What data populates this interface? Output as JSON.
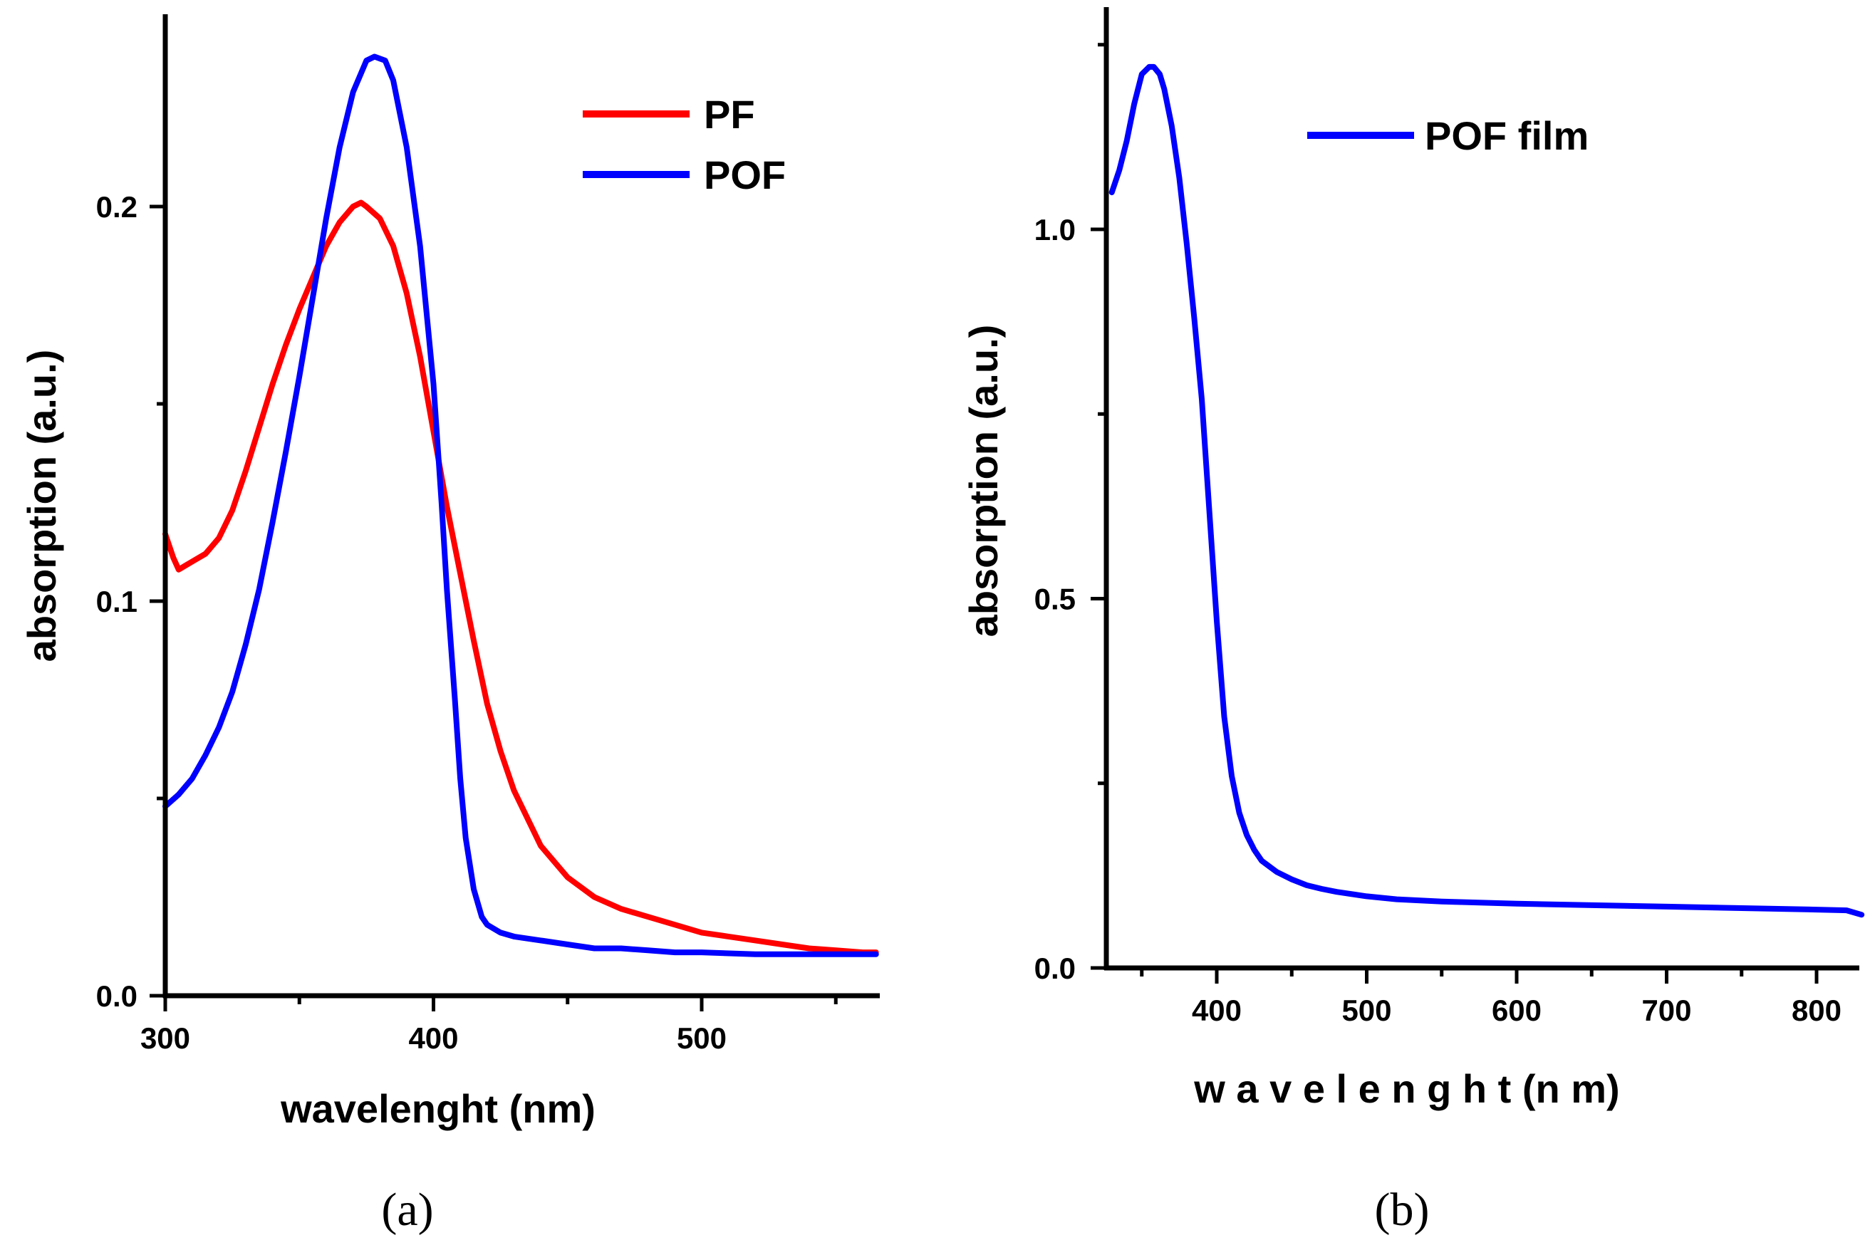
{
  "chart_data": [
    {
      "type": "line",
      "panel": "a",
      "caption": "(a)",
      "xlabel": "wavelenght (nm)",
      "ylabel": "absorption (a.u.)",
      "xlim": [
        300,
        565
      ],
      "ylim": [
        0.0,
        0.25
      ],
      "xticks": [
        300,
        400,
        500
      ],
      "xtick_labels": [
        "300",
        "400",
        "500"
      ],
      "xminor": [
        350,
        450,
        550
      ],
      "yticks": [
        0.0,
        0.1,
        0.2
      ],
      "ytick_labels": [
        "0.0",
        "0.1",
        "0.2"
      ],
      "yminor": [
        0.05,
        0.15
      ],
      "legend_position": "top-right",
      "series": [
        {
          "name": "PF",
          "color": "#ff0000",
          "x": [
            300,
            303,
            305,
            310,
            315,
            320,
            325,
            330,
            335,
            340,
            345,
            350,
            355,
            360,
            365,
            370,
            373,
            375,
            380,
            385,
            390,
            395,
            400,
            405,
            410,
            415,
            420,
            425,
            430,
            440,
            450,
            460,
            470,
            480,
            490,
            500,
            510,
            520,
            530,
            540,
            550,
            560,
            565
          ],
          "y": [
            0.117,
            0.111,
            0.108,
            0.11,
            0.112,
            0.116,
            0.123,
            0.133,
            0.144,
            0.155,
            0.165,
            0.174,
            0.182,
            0.19,
            0.196,
            0.2,
            0.201,
            0.2,
            0.197,
            0.19,
            0.178,
            0.162,
            0.143,
            0.124,
            0.107,
            0.09,
            0.074,
            0.062,
            0.052,
            0.038,
            0.03,
            0.025,
            0.022,
            0.02,
            0.018,
            0.016,
            0.015,
            0.014,
            0.013,
            0.012,
            0.0115,
            0.011,
            0.011
          ]
        },
        {
          "name": "POF",
          "color": "#0000ff",
          "x": [
            300,
            305,
            310,
            315,
            320,
            325,
            330,
            335,
            340,
            345,
            350,
            355,
            360,
            365,
            370,
            375,
            378,
            382,
            385,
            390,
            395,
            400,
            403,
            405,
            408,
            410,
            412,
            415,
            418,
            420,
            425,
            430,
            440,
            450,
            460,
            470,
            480,
            490,
            500,
            520,
            540,
            565
          ],
          "y": [
            0.048,
            0.051,
            0.055,
            0.061,
            0.068,
            0.077,
            0.089,
            0.103,
            0.12,
            0.138,
            0.157,
            0.177,
            0.197,
            0.215,
            0.229,
            0.237,
            0.238,
            0.237,
            0.232,
            0.215,
            0.19,
            0.155,
            0.125,
            0.103,
            0.075,
            0.055,
            0.04,
            0.027,
            0.02,
            0.018,
            0.016,
            0.015,
            0.014,
            0.013,
            0.012,
            0.012,
            0.0115,
            0.011,
            0.011,
            0.0105,
            0.0105,
            0.0105
          ]
        }
      ]
    },
    {
      "type": "line",
      "panel": "b",
      "caption": "(b)",
      "xlabel": "w a v e l e n g h t (n m)",
      "ylabel": "absorption (a.u.)",
      "xlim": [
        325,
        830
      ],
      "ylim": [
        0.0,
        1.3
      ],
      "xticks": [
        400,
        500,
        600,
        700,
        800
      ],
      "xtick_labels": [
        "400",
        "500",
        "600",
        "700",
        "800"
      ],
      "xminor": [
        350,
        450,
        550,
        650,
        750
      ],
      "yticks": [
        0.0,
        0.5,
        1.0
      ],
      "ytick_labels": [
        "0.0",
        "0.5",
        "1.0"
      ],
      "yminor": [
        0.25,
        0.75,
        1.25
      ],
      "legend_position": "top-right",
      "series": [
        {
          "name": "POF film",
          "color": "#0000ff",
          "x": [
            330,
            335,
            340,
            345,
            350,
            355,
            358,
            362,
            365,
            370,
            375,
            380,
            385,
            390,
            395,
            400,
            405,
            410,
            415,
            420,
            425,
            430,
            440,
            450,
            460,
            470,
            480,
            500,
            520,
            550,
            600,
            650,
            700,
            750,
            800,
            820,
            830
          ],
          "y": [
            1.05,
            1.08,
            1.12,
            1.17,
            1.21,
            1.22,
            1.22,
            1.21,
            1.19,
            1.14,
            1.07,
            0.98,
            0.88,
            0.77,
            0.62,
            0.47,
            0.34,
            0.26,
            0.21,
            0.18,
            0.16,
            0.145,
            0.13,
            0.12,
            0.112,
            0.107,
            0.103,
            0.097,
            0.093,
            0.09,
            0.087,
            0.085,
            0.083,
            0.081,
            0.079,
            0.078,
            0.072
          ]
        }
      ]
    }
  ]
}
